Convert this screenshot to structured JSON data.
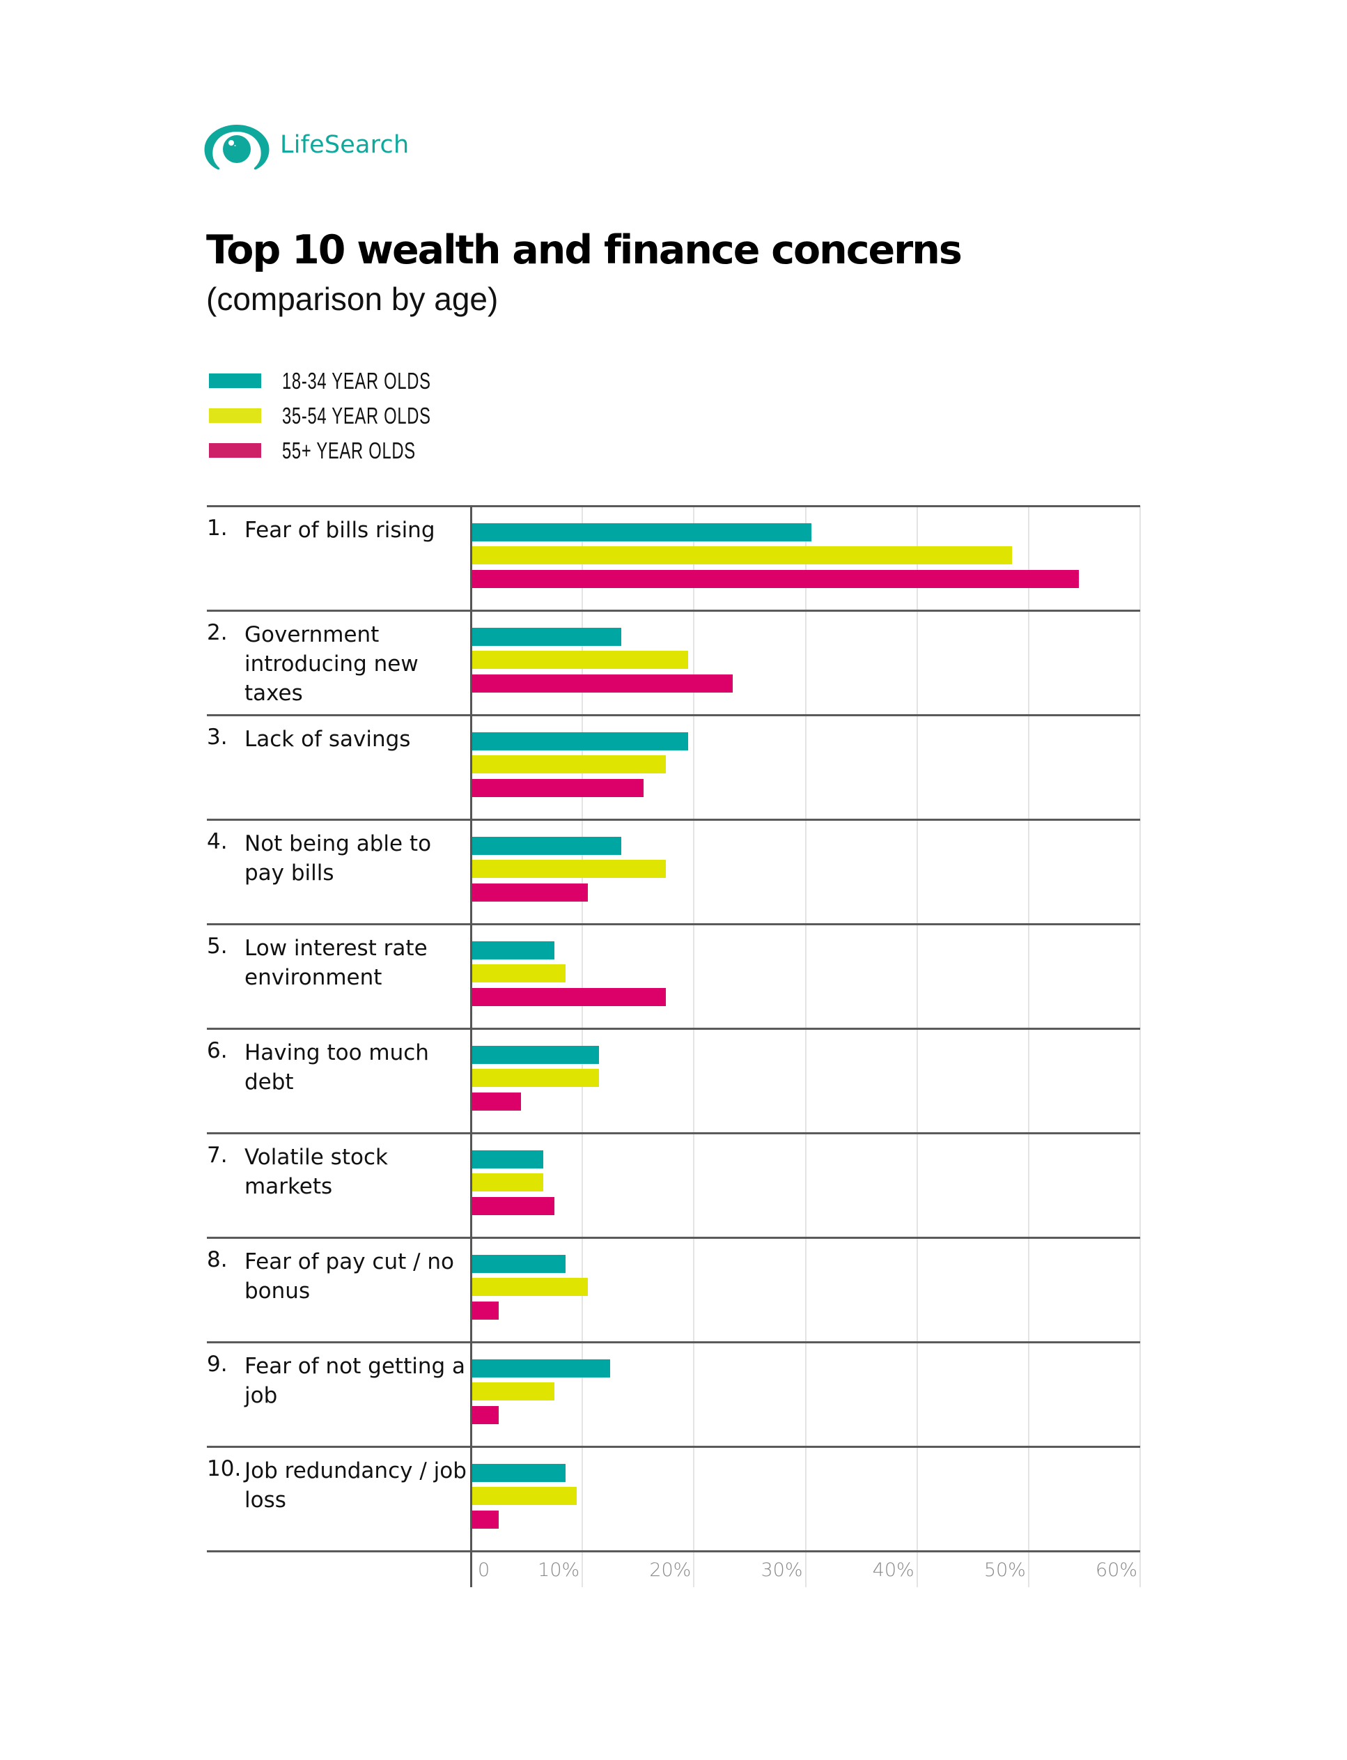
{
  "brand": {
    "name": "LifeSearch",
    "logo_icon": "eye-icon",
    "color": "#0fa89d"
  },
  "header": {
    "title": "Top 10 wealth and finance concerns",
    "subtitle": "(comparison by age)"
  },
  "legend": [
    {
      "label": "18-34 YEAR OLDS",
      "color": "#02a7a2"
    },
    {
      "label": "35-54 YEAR OLDS",
      "color": "#dfe517"
    },
    {
      "label": "55+ YEAR OLDS",
      "color": "#ce1f69"
    }
  ],
  "chart_data": {
    "type": "bar",
    "orientation": "horizontal",
    "title": "Top 10 wealth and finance concerns",
    "subtitle": "(comparison by age)",
    "xlabel": "",
    "ylabel": "",
    "xlim": [
      0,
      60
    ],
    "x_ticks": [
      "0",
      "10%",
      "20%",
      "30%",
      "40%",
      "50%",
      "60%"
    ],
    "grid": "vertical",
    "legend_position": "top-left",
    "categories": [
      "Fear of bills rising",
      "Government introducing new taxes",
      "Lack of savings",
      "Not being able to pay bills",
      "Low interest rate environment",
      "Having too much debt",
      "Volatile stock markets",
      "Fear of pay cut / no bonus",
      "Fear of not getting a job",
      "Job redundancy / job loss"
    ],
    "series": [
      {
        "name": "18-34 YEAR OLDS",
        "color": "#00a6a1",
        "values": [
          30.5,
          13.5,
          19.5,
          13.5,
          7.5,
          11.5,
          6.5,
          8.5,
          12.5,
          8.5
        ]
      },
      {
        "name": "35-54 YEAR OLDS",
        "color": "#dfe500",
        "values": [
          48.5,
          19.5,
          17.5,
          17.5,
          8.5,
          11.5,
          6.5,
          10.5,
          7.5,
          9.5
        ]
      },
      {
        "name": "55+ YEAR OLDS",
        "color": "#dc0069",
        "values": [
          54.5,
          23.5,
          15.5,
          10.5,
          17.5,
          4.5,
          7.5,
          2.5,
          2.5,
          2.5
        ]
      }
    ]
  },
  "rows": [
    {
      "num": "1.",
      "label": "Fear of bills rising"
    },
    {
      "num": "2.",
      "label": "Government introducing new taxes"
    },
    {
      "num": "3.",
      "label": "Lack of savings"
    },
    {
      "num": "4.",
      "label": "Not being able to pay bills"
    },
    {
      "num": "5.",
      "label": "Low interest rate environment"
    },
    {
      "num": "6.",
      "label": "Having too much debt"
    },
    {
      "num": "7.",
      "label": "Volatile stock markets"
    },
    {
      "num": "8.",
      "label": "Fear of pay cut / no bonus"
    },
    {
      "num": "9.",
      "label": "Fear of not getting a job"
    },
    {
      "num": "10.",
      "label": "Job redundancy / job loss"
    }
  ],
  "axis": {
    "ticks": [
      "0",
      "10%",
      "20%",
      "30%",
      "40%",
      "50%",
      "60%"
    ]
  }
}
